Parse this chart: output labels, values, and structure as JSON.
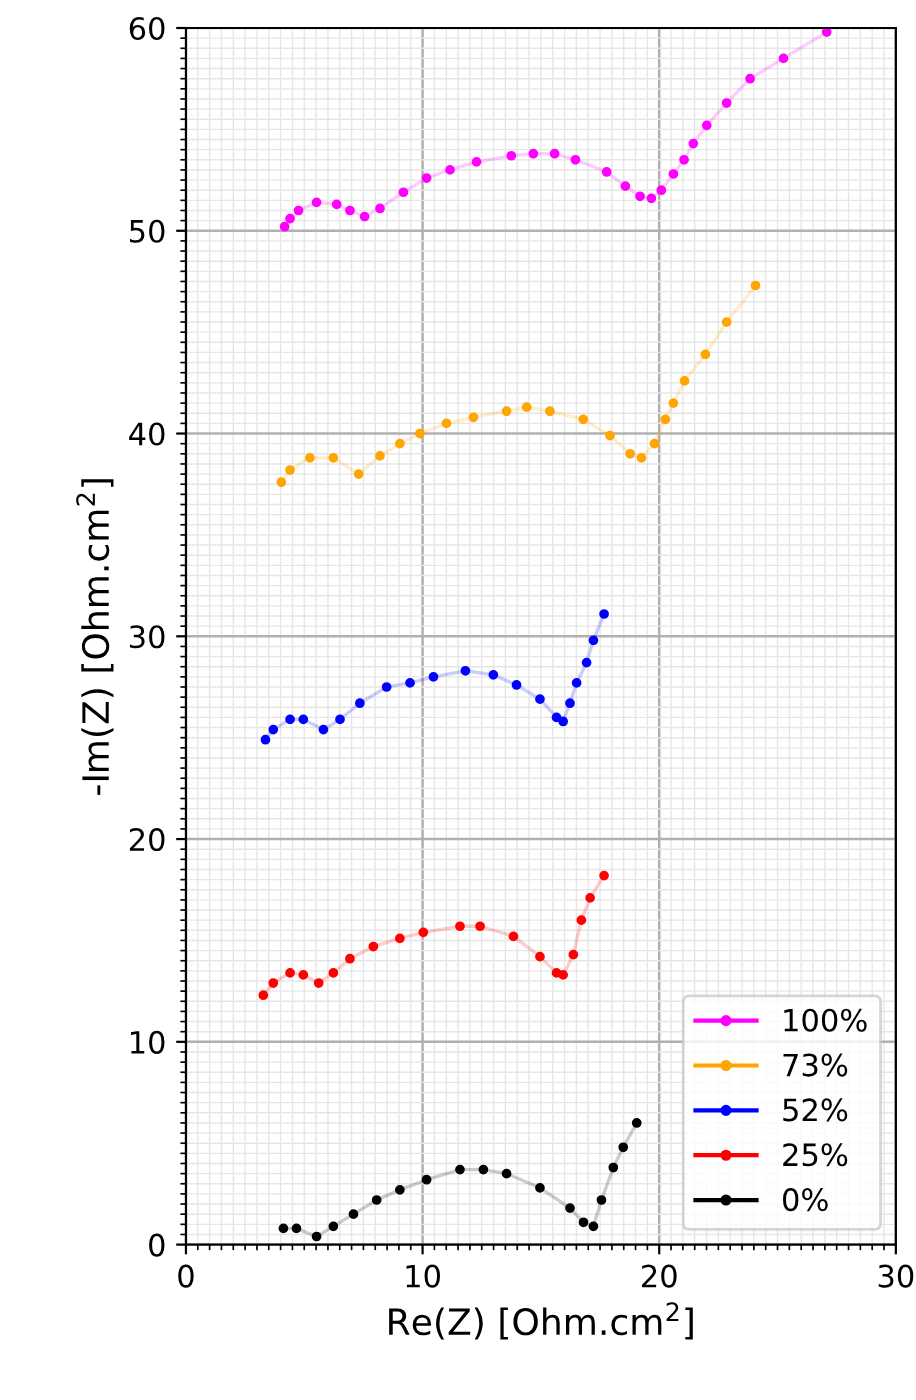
{
  "chart_data": {
    "type": "line",
    "xlabel": "Re(Z) [Ohm.cm$^{2}$]",
    "ylabel": "-Im(Z) [Ohm.cm$^{2}$]",
    "xlim": [
      0,
      30
    ],
    "ylim": [
      0,
      60
    ],
    "xticks": [
      0,
      10,
      20,
      30
    ],
    "yticks": [
      0,
      10,
      20,
      30,
      40,
      50,
      60
    ],
    "grid": true,
    "legend": "bottom right",
    "marker": "circle",
    "line_style": "solid",
    "series": [
      {
        "name": "100%",
        "color": "#ff00ff",
        "x": [
          4.17,
          4.4,
          4.76,
          5.52,
          6.37,
          6.93,
          7.55,
          8.2,
          9.19,
          10.17,
          11.16,
          12.28,
          13.75,
          14.68,
          15.58,
          16.46,
          17.78,
          18.57,
          19.19,
          19.67,
          20.09,
          20.6,
          21.05,
          21.44,
          22.01,
          22.85,
          23.84,
          25.25,
          27.08
        ],
        "values": [
          50.2,
          50.6,
          51.0,
          51.4,
          51.3,
          51.0,
          50.7,
          51.1,
          51.9,
          52.6,
          53.0,
          53.4,
          53.7,
          53.8,
          53.8,
          53.5,
          52.9,
          52.2,
          51.7,
          51.6,
          52.0,
          52.8,
          53.5,
          54.3,
          55.2,
          56.3,
          57.5,
          58.5,
          59.8
        ]
      },
      {
        "name": "73%",
        "color": "#ffa500",
        "x": [
          4.03,
          4.4,
          5.24,
          6.23,
          7.3,
          8.2,
          9.04,
          9.89,
          11.01,
          12.15,
          13.55,
          14.4,
          15.38,
          16.79,
          17.92,
          18.77,
          19.25,
          19.8,
          20.26,
          20.6,
          21.07,
          21.95,
          22.85,
          24.07
        ],
        "values": [
          37.6,
          38.2,
          38.8,
          38.8,
          38.0,
          38.9,
          39.5,
          40.0,
          40.5,
          40.8,
          41.1,
          41.3,
          41.1,
          40.7,
          39.9,
          39.0,
          38.8,
          39.5,
          40.7,
          41.5,
          42.6,
          43.9,
          45.5,
          47.3
        ]
      },
      {
        "name": "52%",
        "color": "#0000ff",
        "x": [
          3.36,
          3.69,
          4.4,
          4.96,
          5.81,
          6.51,
          7.35,
          8.48,
          9.47,
          10.46,
          11.81,
          12.99,
          13.97,
          14.96,
          15.66,
          15.94,
          16.23,
          16.51,
          16.93,
          17.22,
          17.67
        ],
        "values": [
          24.9,
          25.4,
          25.9,
          25.9,
          25.4,
          25.9,
          26.7,
          27.5,
          27.7,
          28.0,
          28.3,
          28.1,
          27.6,
          26.9,
          26.0,
          25.8,
          26.7,
          27.7,
          28.7,
          29.8,
          31.1
        ]
      },
      {
        "name": "25%",
        "color": "#ff0000",
        "x": [
          3.27,
          3.69,
          4.4,
          4.96,
          5.61,
          6.23,
          6.93,
          7.92,
          9.04,
          10.03,
          11.58,
          12.43,
          13.84,
          14.96,
          15.66,
          15.94,
          16.37,
          16.71,
          17.08,
          17.67
        ],
        "values": [
          12.3,
          12.9,
          13.4,
          13.3,
          12.9,
          13.4,
          14.1,
          14.7,
          15.1,
          15.4,
          15.7,
          15.7,
          15.2,
          14.2,
          13.4,
          13.3,
          14.3,
          16.0,
          17.1,
          18.2
        ]
      },
      {
        "name": "0%",
        "color": "#000000",
        "x": [
          4.12,
          4.67,
          5.52,
          6.23,
          7.08,
          8.06,
          9.04,
          10.17,
          11.58,
          12.57,
          13.55,
          14.96,
          16.23,
          16.8,
          17.22,
          17.56,
          18.06,
          18.48,
          19.05
        ],
        "values": [
          0.8,
          0.8,
          0.4,
          0.9,
          1.5,
          2.2,
          2.7,
          3.2,
          3.7,
          3.7,
          3.5,
          2.8,
          1.8,
          1.1,
          0.9,
          2.2,
          3.8,
          4.8,
          6.0
        ]
      }
    ]
  }
}
